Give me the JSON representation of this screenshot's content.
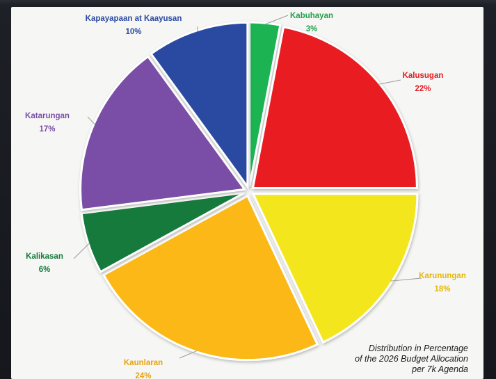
{
  "chart_data": {
    "type": "pie",
    "slices": [
      {
        "label": "Kabuhayan",
        "value": 3,
        "display": "3%",
        "color": "#1fb352",
        "label_color": "#23a04a"
      },
      {
        "label": "Kalusugan",
        "value": 22,
        "display": "22%",
        "color": "#e91e24",
        "label_color": "#e21b22"
      },
      {
        "label": "Karunungan",
        "value": 18,
        "display": "18%",
        "color": "#f4e61a",
        "label_color": "#e6b800"
      },
      {
        "label": "Kaunlaran",
        "value": 24,
        "display": "24%",
        "color": "#fbb816",
        "label_color": "#e8a20c"
      },
      {
        "label": "Kalikasan",
        "value": 6,
        "display": "6%",
        "color": "#137a3c",
        "label_color": "#137a3c"
      },
      {
        "label": "Katarungan",
        "value": 17,
        "display": "17%",
        "color": "#7a4da6",
        "label_color": "#7a4da6"
      },
      {
        "label": "Kapayapaan at Kaayusan",
        "value": 10,
        "display": "10%",
        "color": "#2c4aa0",
        "label_color": "#2c4aa0"
      }
    ]
  },
  "caption": {
    "line1": "Distribution in Percentage",
    "line2": "of the 2026 Budget  Allocation",
    "line3": "per 7k Agenda"
  }
}
